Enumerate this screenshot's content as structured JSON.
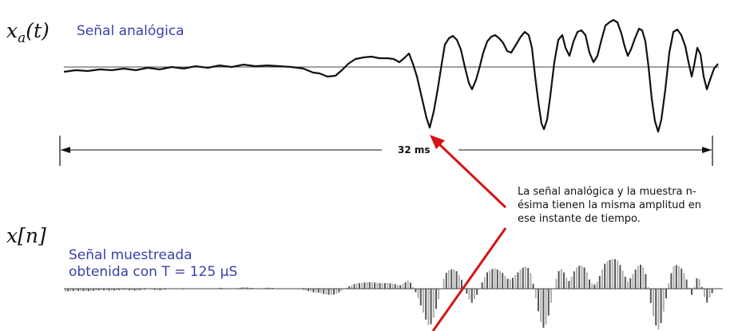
{
  "analog": {
    "symbol": "x",
    "subscript": "a",
    "argument": "(t)",
    "label": "Señal analógica"
  },
  "duration": {
    "label": "32 ms"
  },
  "sampled": {
    "symbol": "x[n]",
    "label_line1": "Señal muestreada",
    "label_line2": "obtenida con T = 125 µS"
  },
  "annotation": {
    "lines": [
      "La señal analógica y la muestra n-",
      "ésima tienen la misma amplitud en",
      "ese instante de tiempo."
    ]
  },
  "colors": {
    "signal": "#111111",
    "baseline": "#444444",
    "label": "#3b3fa8",
    "arrow": "#d31515",
    "stem_dark": "#555555",
    "stem_light": "#b0b0b0"
  }
}
